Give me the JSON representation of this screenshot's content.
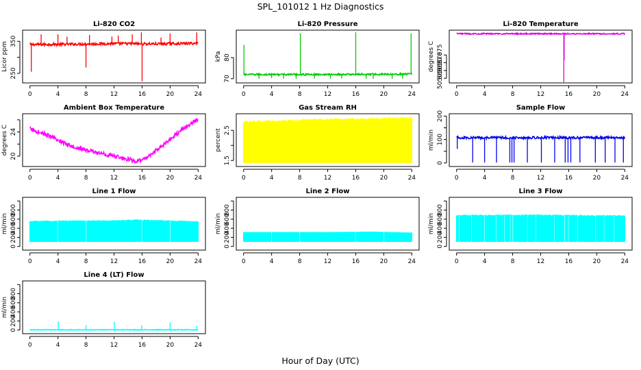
{
  "figure": {
    "title": "SPL_101012  1 Hz Diagnostics",
    "xlabel": "Hour of Day (UTC)"
  },
  "chart_data": [
    {
      "type": "line",
      "title": "Li-820 CO2",
      "ylabel": "Licor ppm",
      "color": "#ff0000",
      "xlim": [
        0,
        24
      ],
      "ylim": [
        220,
        385
      ],
      "xticks": [
        0,
        4,
        8,
        12,
        16,
        20,
        24
      ],
      "yticks": [
        250,
        300,
        350
      ],
      "ytick_labels": [
        "250",
        "",
        "350"
      ],
      "baseline": [
        [
          0,
          340
        ],
        [
          6,
          341
        ],
        [
          12,
          343
        ],
        [
          18,
          342
        ],
        [
          24,
          344
        ]
      ],
      "band": 4,
      "spikes": [
        [
          0.2,
          255
        ],
        [
          1.6,
          372
        ],
        [
          4,
          372
        ],
        [
          5.3,
          365
        ],
        [
          8,
          268
        ],
        [
          8.5,
          370
        ],
        [
          11.7,
          365
        ],
        [
          12.6,
          368
        ],
        [
          14.6,
          372
        ],
        [
          15.9,
          378
        ],
        [
          16,
          225
        ],
        [
          18.7,
          362
        ],
        [
          20,
          375
        ],
        [
          23.8,
          378
        ]
      ]
    },
    {
      "type": "line",
      "title": "Li-820 Pressure",
      "ylabel": "kPa",
      "color": "#00cc00",
      "xlim": [
        0,
        24
      ],
      "ylim": [
        68,
        93
      ],
      "xticks": [
        0,
        4,
        8,
        12,
        16,
        20,
        24
      ],
      "yticks": [
        70,
        80
      ],
      "ytick_labels": [
        "70",
        "80"
      ],
      "baseline": [
        [
          0,
          72
        ],
        [
          12,
          72
        ],
        [
          24,
          72.2
        ]
      ],
      "band": 0.4,
      "spikes": [
        [
          0.05,
          86
        ],
        [
          2.2,
          70
        ],
        [
          4,
          70.3
        ],
        [
          5.7,
          70
        ],
        [
          7.5,
          70
        ],
        [
          8.1,
          91.5
        ],
        [
          10.1,
          70
        ],
        [
          12.4,
          70
        ],
        [
          14,
          70.1
        ],
        [
          16,
          92
        ],
        [
          17.5,
          70
        ],
        [
          18.5,
          70
        ],
        [
          21.2,
          70
        ],
        [
          22.7,
          70
        ],
        [
          23.9,
          91.5
        ]
      ]
    },
    {
      "type": "line",
      "title": "Li-820 Temperature",
      "ylabel": "degrees C",
      "color": "#dd00dd",
      "xlim": [
        0,
        24
      ],
      "ylim": [
        50.857,
        50.891
      ],
      "xticks": [
        0,
        4,
        8,
        12,
        16,
        20,
        24
      ],
      "yticks": [
        50.86,
        50.865,
        50.87,
        50.875
      ],
      "ytick_labels": [
        "50.860",
        "50.865",
        "50.870",
        "50.875"
      ],
      "baseline": [
        [
          0,
          50.8887
        ],
        [
          24,
          50.8887
        ]
      ],
      "band": 0.0004,
      "spikes": [
        [
          15.3,
          50.8575
        ],
        [
          15.35,
          50.8715
        ]
      ]
    },
    {
      "type": "line",
      "title": "Ambient Box Temperature",
      "ylabel": "degrees C",
      "color": "#ff00ff",
      "xlim": [
        0,
        24
      ],
      "ylim": [
        18.3,
        27
      ],
      "xticks": [
        0,
        4,
        8,
        12,
        16,
        20,
        24
      ],
      "yticks": [
        20,
        22,
        24,
        26
      ],
      "ytick_labels": [
        "20",
        "",
        "24",
        ""
      ],
      "baseline": [
        [
          0,
          24.5
        ],
        [
          2,
          23.7
        ],
        [
          4,
          22.6
        ],
        [
          6,
          21.7
        ],
        [
          8,
          21.0
        ],
        [
          10,
          20.5
        ],
        [
          12,
          20.0
        ],
        [
          14,
          19.5
        ],
        [
          15.3,
          19.1
        ],
        [
          16,
          19.3
        ],
        [
          18,
          20.9
        ],
        [
          20,
          22.8
        ],
        [
          22,
          24.6
        ],
        [
          24,
          26.2
        ]
      ],
      "band": 0.35,
      "spikes": []
    },
    {
      "type": "line",
      "title": "Gas Stream RH",
      "ylabel": "percent",
      "color": "#ffff00",
      "xlim": [
        0,
        24
      ],
      "ylim": [
        1.3,
        3.05
      ],
      "xticks": [
        0,
        4,
        8,
        12,
        16,
        20,
        24
      ],
      "yticks": [
        1.5,
        2,
        2.5
      ],
      "ytick_labels": [
        "1.5",
        "",
        "2.5"
      ],
      "baseline": [
        [
          0,
          1.42
        ],
        [
          24,
          1.42
        ]
      ],
      "band": 0,
      "fill_top": [
        [
          0,
          2.82
        ],
        [
          6,
          2.86
        ],
        [
          12,
          2.9
        ],
        [
          18,
          2.92
        ],
        [
          24,
          2.96
        ]
      ],
      "spikes": []
    },
    {
      "type": "line",
      "title": "Sample Flow",
      "ylabel": "ml/min",
      "color": "#0000ee",
      "xlim": [
        0,
        24
      ],
      "ylim": [
        -15,
        210
      ],
      "xticks": [
        0,
        4,
        8,
        12,
        16,
        20,
        24
      ],
      "yticks": [
        0,
        50,
        100,
        150,
        200
      ],
      "ytick_labels": [
        "0",
        "",
        "100",
        "",
        "200"
      ],
      "baseline": [
        [
          0,
          108
        ],
        [
          24,
          108
        ]
      ],
      "band": 5,
      "spikes": [
        [
          0.1,
          60
        ],
        [
          2.3,
          2
        ],
        [
          4,
          2
        ],
        [
          5.7,
          2
        ],
        [
          7.6,
          2
        ],
        [
          7.9,
          2
        ],
        [
          8.2,
          2
        ],
        [
          10.1,
          2
        ],
        [
          12.1,
          2
        ],
        [
          14,
          2
        ],
        [
          15.5,
          2
        ],
        [
          15.9,
          2
        ],
        [
          16.3,
          2
        ],
        [
          17.6,
          2
        ],
        [
          19.8,
          2
        ],
        [
          21.2,
          2
        ],
        [
          22.6,
          2
        ],
        [
          23.8,
          2
        ]
      ]
    },
    {
      "type": "line",
      "title": "Line 1 Flow",
      "ylabel": "ml/min",
      "color": "#00ffff",
      "xlim": [
        0,
        24
      ],
      "ylim": [
        -80,
        1080
      ],
      "xticks": [
        0,
        4,
        8,
        12,
        16,
        20,
        24
      ],
      "yticks": [
        0,
        200,
        400,
        600,
        800,
        1000
      ],
      "ytick_labels": [
        "0",
        "200",
        "400",
        "600",
        "800",
        ""
      ],
      "baseline": [
        [
          0,
          100
        ],
        [
          24,
          100
        ]
      ],
      "band": 0,
      "fill_top": [
        [
          0,
          570
        ],
        [
          12,
          580
        ],
        [
          15,
          600
        ],
        [
          24,
          560
        ]
      ],
      "gaps": [
        4.05,
        7.95,
        12,
        15.9,
        19.95
      ],
      "spikes": []
    },
    {
      "type": "line",
      "title": "Line 2 Flow",
      "ylabel": "ml/min",
      "color": "#00ffff",
      "xlim": [
        0,
        24
      ],
      "ylim": [
        -80,
        1080
      ],
      "xticks": [
        0,
        4,
        8,
        12,
        16,
        20,
        24
      ],
      "yticks": [
        0,
        200,
        400,
        600,
        800,
        1000
      ],
      "ytick_labels": [
        "0",
        "200",
        "400",
        "600",
        "800",
        ""
      ],
      "baseline": [
        [
          0,
          100
        ],
        [
          24,
          100
        ]
      ],
      "band": 0,
      "fill_top": [
        [
          0,
          320
        ],
        [
          12,
          320
        ],
        [
          18,
          330
        ],
        [
          24,
          310
        ]
      ],
      "gaps": [
        4.05,
        7.95,
        12,
        15.9,
        19.95
      ],
      "spikes": []
    },
    {
      "type": "line",
      "title": "Line 3 Flow",
      "ylabel": "ml/min",
      "color": "#00ffff",
      "xlim": [
        0,
        24
      ],
      "ylim": [
        -80,
        1080
      ],
      "xticks": [
        0,
        4,
        8,
        12,
        16,
        20,
        24
      ],
      "yticks": [
        0,
        200,
        400,
        600,
        800,
        1000
      ],
      "ytick_labels": [
        "0",
        "200",
        "400",
        "600",
        "800",
        ""
      ],
      "baseline": [
        [
          0,
          100
        ],
        [
          24,
          100
        ]
      ],
      "band": 0,
      "fill_top": [
        [
          0,
          700
        ],
        [
          12,
          705
        ],
        [
          24,
          690
        ]
      ],
      "gaps": [
        0.45,
        2.2,
        3.6,
        4.05,
        5.7,
        6.9,
        7.6,
        7.95,
        10.1,
        11.3,
        12,
        14,
        15.5,
        15.9,
        17.2,
        19.9,
        21.1,
        22.5
      ],
      "spikes": []
    },
    {
      "type": "line",
      "title": "Line 4 (LT) Flow",
      "ylabel": "ml/min",
      "color": "#00ffff",
      "xlim": [
        0,
        24
      ],
      "ylim": [
        -80,
        1080
      ],
      "xticks": [
        0,
        4,
        8,
        12,
        16,
        20,
        24
      ],
      "yticks": [
        0,
        200,
        400,
        600,
        800,
        1000
      ],
      "ytick_labels": [
        "0",
        "200",
        "400",
        "600",
        "800",
        ""
      ],
      "baseline": [
        [
          0,
          5
        ],
        [
          24,
          5
        ]
      ],
      "band": 8,
      "spikes": [
        [
          4.05,
          190
        ],
        [
          8,
          110
        ],
        [
          12.05,
          185
        ],
        [
          15.95,
          105
        ],
        [
          20,
          170
        ],
        [
          23.8,
          90
        ]
      ]
    }
  ]
}
